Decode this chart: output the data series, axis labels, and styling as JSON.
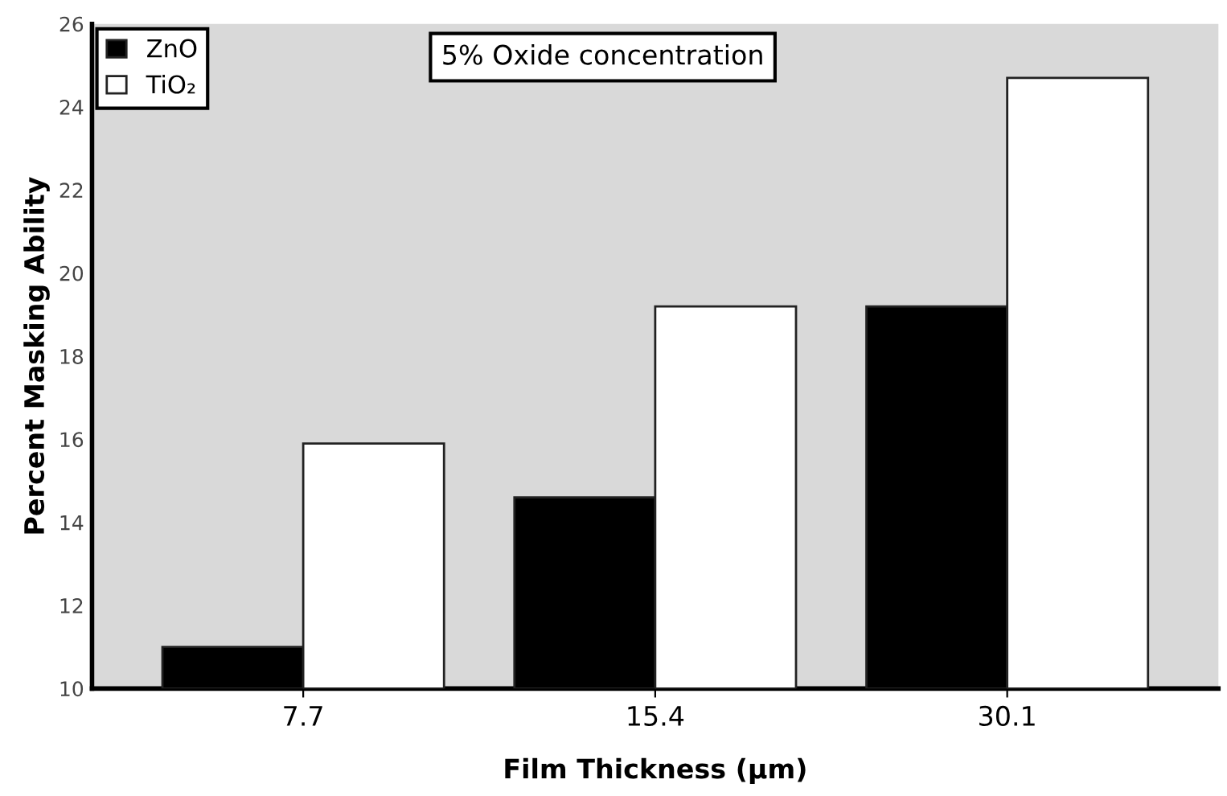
{
  "chart_data": {
    "type": "bar",
    "xlabel": "Film Thickness (µm)",
    "ylabel": "Percent Masking Ability",
    "annotations": [
      "5% Oxide concentration"
    ],
    "categories": [
      "7.7",
      "15.4",
      "30.1"
    ],
    "series": [
      {
        "name": "ZnO",
        "color": "#000000",
        "values": [
          11.0,
          14.6,
          19.2
        ]
      },
      {
        "name": "TiO₂",
        "color": "#ffffff",
        "values": [
          15.9,
          19.2,
          24.7
        ]
      }
    ],
    "ylim": [
      10,
      26
    ],
    "yticks": [
      10,
      12,
      14,
      16,
      18,
      20,
      22,
      24,
      26
    ],
    "grid": false,
    "legend": "top left"
  }
}
